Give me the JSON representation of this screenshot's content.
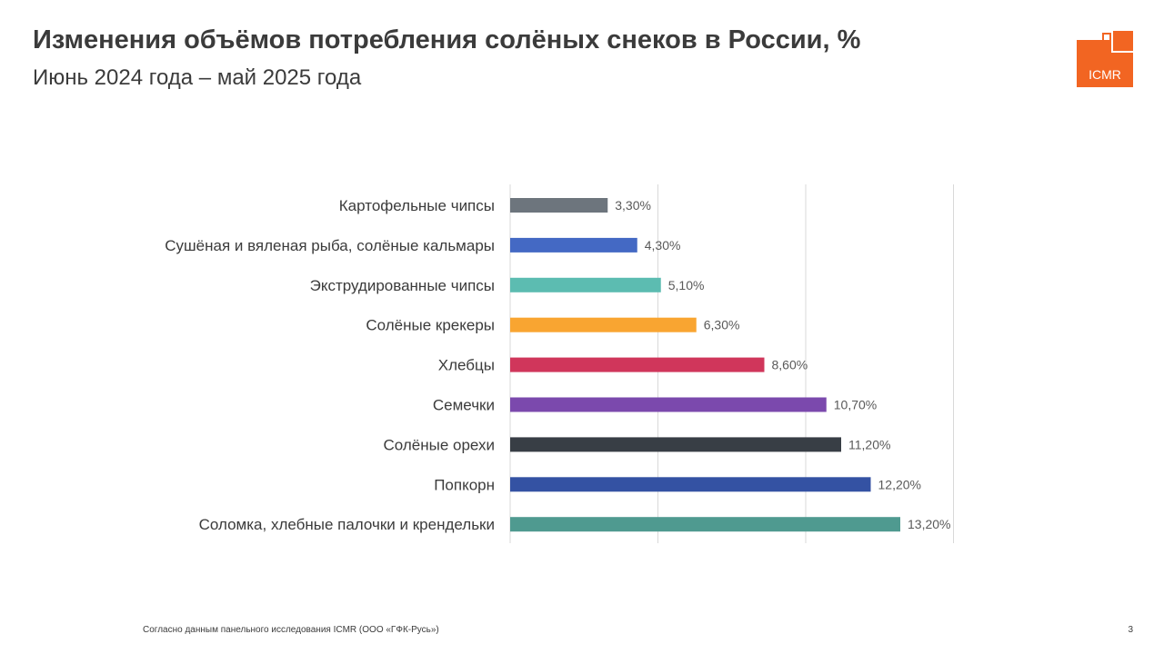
{
  "header": {
    "title": "Изменения объёмов потребления солёных снеков в России, %",
    "subtitle": "Июнь 2024 года – май 2025 года"
  },
  "logo": {
    "text": "ICMR",
    "color": "#f26522"
  },
  "chart_data": {
    "type": "bar",
    "orientation": "horizontal",
    "title": "",
    "xlabel": "",
    "ylabel": "",
    "xlim": [
      0,
      15
    ],
    "grid": true,
    "legend": "none",
    "categories": [
      "Картофельные чипсы",
      "Сушёная и вяленая рыба, солёные кальмары",
      "Экструдированные чипсы",
      "Солёные крекеры",
      "Хлебцы",
      "Семечки",
      "Солёные орехи",
      "Попкорн",
      "Соломка, хлебные палочки и крендельки"
    ],
    "values": [
      3.3,
      4.3,
      5.1,
      6.3,
      8.6,
      10.7,
      11.2,
      12.2,
      13.2
    ],
    "labels": [
      "3,30%",
      "4,30%",
      "5,10%",
      "6,30%",
      "8,60%",
      "10,70%",
      "11,20%",
      "12,20%",
      "13,20%"
    ],
    "colors": [
      "#6d757d",
      "#4469c4",
      "#5cbcb1",
      "#f9a531",
      "#d0365b",
      "#7b49ad",
      "#383e45",
      "#3452a3",
      "#4f9a90"
    ]
  },
  "footer": {
    "source": "Согласно данным панельного исследования ICMR (ООО «ГФК-Русь»)",
    "page": "3"
  }
}
